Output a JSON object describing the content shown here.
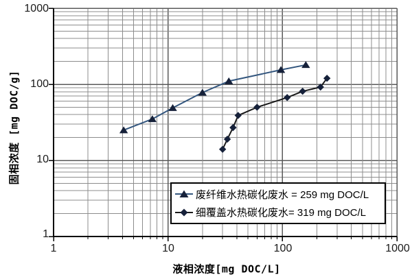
{
  "chart_data": {
    "type": "line",
    "title": "",
    "xlabel": "液相浓度[mg DOC/L]",
    "ylabel": "固相浓度 [mg DOC/g]",
    "x_scale": "log",
    "y_scale": "log",
    "xlim": [
      1,
      1000
    ],
    "ylim": [
      1,
      1000
    ],
    "x_ticks": [
      "1",
      "10",
      "100",
      "1000"
    ],
    "y_ticks": [
      "1",
      "10",
      "100",
      "1000"
    ],
    "grid": "log major and minor gridlines, both axes",
    "legend_position": "inside lower-right, boxed",
    "series": [
      {
        "name": "废纤维水热碳化废水 = 259 mg DOC/L",
        "marker": "triangle",
        "line_color": "#33567E",
        "marker_color": "#16213A",
        "points": [
          [
            4.1,
            25
          ],
          [
            7.3,
            35
          ],
          [
            11,
            49
          ],
          [
            20,
            78
          ],
          [
            34,
            110
          ],
          [
            97,
            155
          ],
          [
            160,
            180
          ]
        ]
      },
      {
        "name": "细覆盖水热碳化废水= 319 mg DOC/L",
        "marker": "diamond",
        "line_color": "#1A1A1A",
        "marker_color": "#16213A",
        "points": [
          [
            30,
            14
          ],
          [
            33,
            19
          ],
          [
            37,
            27
          ],
          [
            41,
            39
          ],
          [
            60,
            50
          ],
          [
            110,
            67
          ],
          [
            150,
            81
          ],
          [
            215,
            92
          ],
          [
            245,
            120
          ]
        ]
      }
    ]
  },
  "colors": {
    "background": "#ffffff",
    "axis": "#000000",
    "grid_major": "#595959",
    "grid_minor": "#8C8C8C",
    "tick_label": "#1a1a1a"
  }
}
